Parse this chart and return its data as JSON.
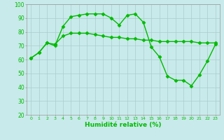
{
  "xlabel": "Humidité relative (%)",
  "background_color": "#c8eaea",
  "grid_color": "#aacccc",
  "line_color": "#00bb00",
  "x_values": [
    0,
    1,
    2,
    3,
    4,
    5,
    6,
    7,
    8,
    9,
    10,
    11,
    12,
    13,
    14,
    15,
    16,
    17,
    18,
    19,
    20,
    21,
    22,
    23
  ],
  "series1": [
    61,
    65,
    72,
    70,
    84,
    91,
    92,
    93,
    93,
    93,
    90,
    85,
    92,
    93,
    87,
    69,
    62,
    48,
    45,
    45,
    41,
    49,
    59,
    71
  ],
  "series2": [
    61,
    65,
    72,
    71,
    77,
    79,
    79,
    79,
    78,
    77,
    76,
    76,
    75,
    75,
    74,
    74,
    73,
    73,
    73,
    73,
    73,
    72,
    72,
    72
  ],
  "ylim": [
    20,
    100
  ],
  "yticks": [
    20,
    30,
    40,
    50,
    60,
    70,
    80,
    90,
    100
  ],
  "xticks": [
    0,
    1,
    2,
    3,
    4,
    5,
    6,
    7,
    8,
    9,
    10,
    11,
    12,
    13,
    14,
    15,
    16,
    17,
    18,
    19,
    20,
    21,
    22,
    23
  ],
  "markersize": 2.5,
  "linewidth": 1.0
}
